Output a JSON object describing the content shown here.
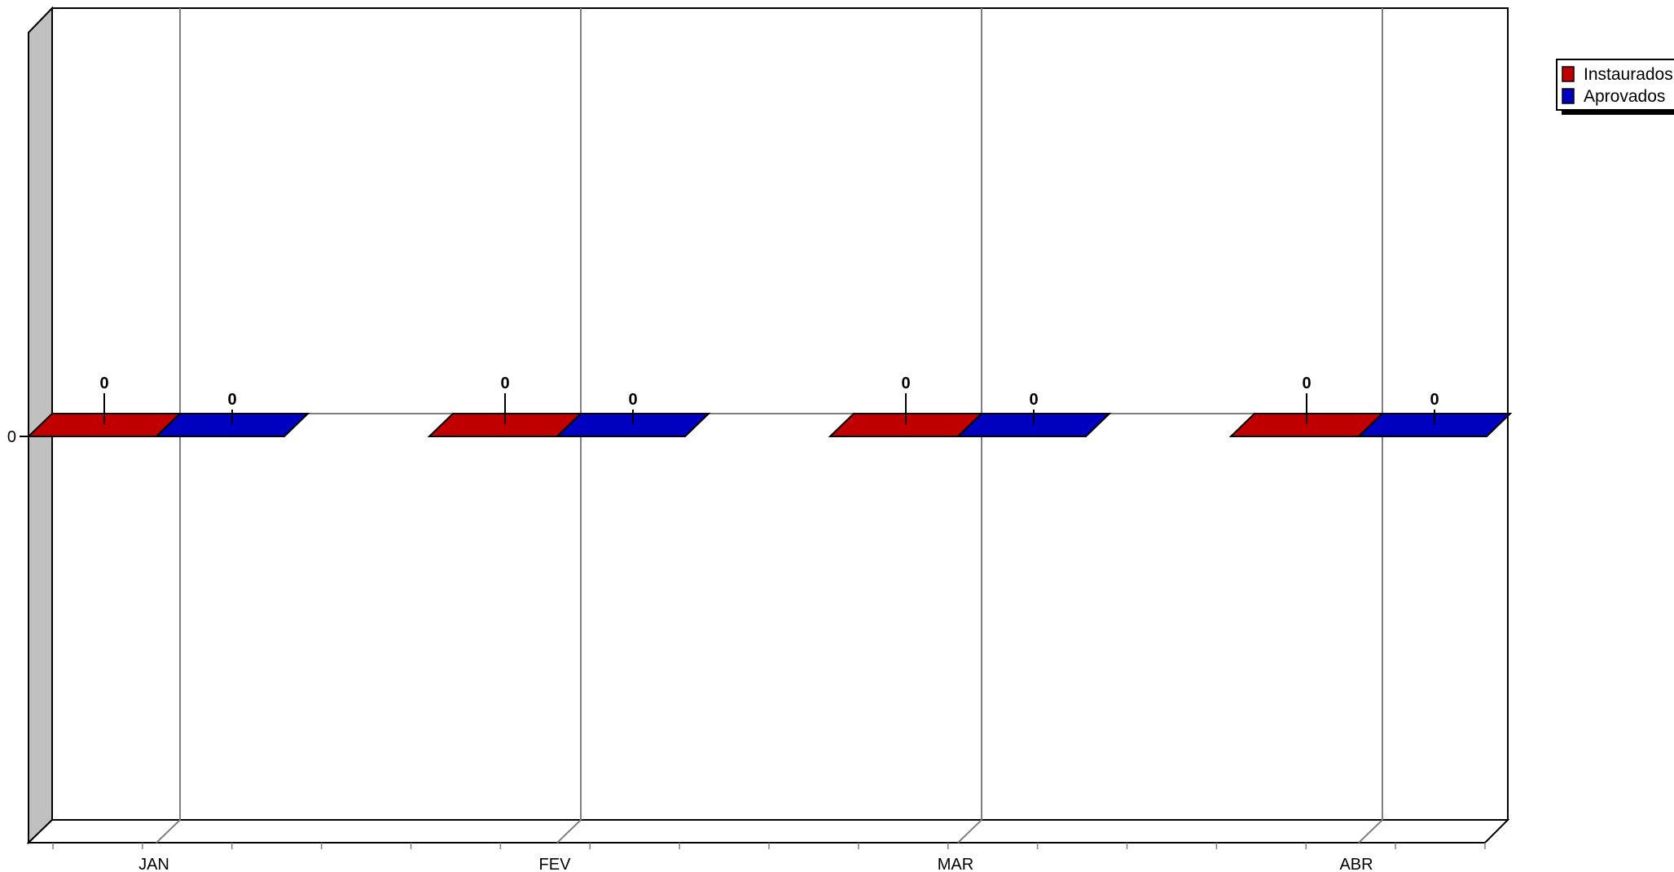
{
  "chart_data": {
    "type": "bar",
    "style": "3d",
    "categories": [
      "JAN",
      "FEV",
      "MAR",
      "ABR"
    ],
    "series": [
      {
        "name": "Instaurados",
        "values": [
          0,
          0,
          0,
          0
        ],
        "color": "#C00000"
      },
      {
        "name": "Aprovados",
        "values": [
          0,
          0,
          0,
          0
        ],
        "color": "#0000C0"
      }
    ],
    "y_ticks": [
      "0"
    ],
    "data_labels": true,
    "grid": true,
    "legend_position": "top-right",
    "colors": {
      "side_wall": "#C0C0C0",
      "grid": "#808080",
      "axis": "#000000"
    }
  }
}
